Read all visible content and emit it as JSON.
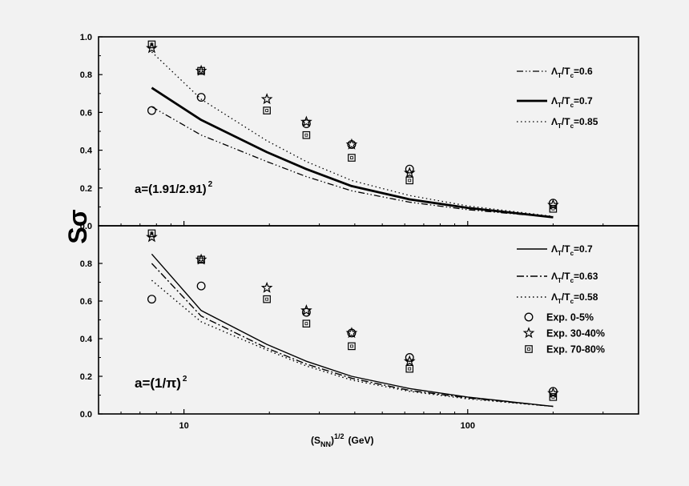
{
  "figure": {
    "ylabel": "Sσ",
    "xlabel": {
      "main": "(S",
      "sub": "NN",
      "sup": ")",
      "exp": "1/2",
      "unit": "(GeV)"
    }
  },
  "chart_data": [
    {
      "type": "line",
      "panel": "top",
      "annotation": {
        "main": "a=(1.91/2.91)",
        "exp": "2"
      },
      "x_scale": "log",
      "xlim": [
        5,
        400
      ],
      "ylim": [
        0,
        1.0
      ],
      "xticks": [
        {
          "v": 10,
          "label": "10"
        },
        {
          "v": 100,
          "label": "100"
        }
      ],
      "yticks": [
        {
          "v": 0.0,
          "label": "0.0"
        },
        {
          "v": 0.2,
          "label": "0.2"
        },
        {
          "v": 0.4,
          "label": "0.4"
        },
        {
          "v": 0.6,
          "label": "0.6"
        },
        {
          "v": 0.8,
          "label": "0.8"
        },
        {
          "v": 1.0,
          "label": "1.0"
        }
      ],
      "legend_position": "top-right",
      "series": [
        {
          "name_a": "Λ",
          "name_sub1": "T",
          "name_b": "/T",
          "name_sub2": "c",
          "name_c": "=0.6",
          "style": "dashdotdot",
          "width": 1.3,
          "x": [
            7.7,
            11.5,
            19.6,
            27,
            39,
            62.4,
            100,
            200
          ],
          "y": [
            0.63,
            0.48,
            0.34,
            0.26,
            0.185,
            0.125,
            0.085,
            0.045
          ]
        },
        {
          "name_a": "Λ",
          "name_sub1": "T",
          "name_b": "/T",
          "name_sub2": "c",
          "name_c": "=0.7",
          "style": "solid",
          "width": 2.8,
          "x": [
            7.7,
            11.5,
            19.6,
            27,
            39,
            62.4,
            100,
            200
          ],
          "y": [
            0.73,
            0.56,
            0.39,
            0.3,
            0.21,
            0.14,
            0.095,
            0.045
          ]
        },
        {
          "name_a": "Λ",
          "name_sub1": "T",
          "name_b": "/T",
          "name_sub2": "c",
          "name_c": "=0.85",
          "style": "dotted",
          "width": 1.3,
          "x": [
            7.7,
            11.5,
            19.6,
            27,
            39,
            62.4,
            100,
            200
          ],
          "y": [
            0.92,
            0.67,
            0.45,
            0.34,
            0.24,
            0.16,
            0.105,
            0.05
          ]
        }
      ],
      "points": [
        {
          "marker": "circle",
          "x": [
            7.7,
            11.5,
            27,
            39,
            62.4,
            200
          ],
          "y": [
            0.61,
            0.68,
            0.54,
            0.43,
            0.3,
            0.12
          ]
        },
        {
          "marker": "star",
          "x": [
            7.7,
            11.5,
            19.6,
            27,
            39,
            62.4,
            200
          ],
          "y": [
            0.94,
            0.82,
            0.67,
            0.55,
            0.43,
            0.28,
            0.11
          ]
        },
        {
          "marker": "square",
          "x": [
            7.7,
            11.5,
            19.6,
            27,
            39,
            62.4,
            200
          ],
          "y": [
            0.96,
            0.82,
            0.61,
            0.48,
            0.36,
            0.24,
            0.09
          ]
        }
      ]
    },
    {
      "type": "line",
      "panel": "bottom",
      "annotation": {
        "main": "a=(1/π)",
        "exp": "2"
      },
      "x_scale": "log",
      "xlim": [
        5,
        400
      ],
      "ylim": [
        0,
        1.0
      ],
      "xticks": [
        {
          "v": 10,
          "label": "10"
        },
        {
          "v": 100,
          "label": "100"
        }
      ],
      "yticks": [
        {
          "v": 0.0,
          "label": "0.0"
        },
        {
          "v": 0.2,
          "label": "0.2"
        },
        {
          "v": 0.4,
          "label": "0.4"
        },
        {
          "v": 0.6,
          "label": "0.6"
        },
        {
          "v": 0.8,
          "label": "0.8"
        }
      ],
      "legend_position": "top-right",
      "series": [
        {
          "name_a": "Λ",
          "name_sub1": "T",
          "name_b": "/T",
          "name_sub2": "c",
          "name_c": "=0.7",
          "style": "solid",
          "width": 1.4,
          "x": [
            7.7,
            11.5,
            19.6,
            27,
            39,
            62.4,
            100,
            200
          ],
          "y": [
            0.85,
            0.55,
            0.37,
            0.28,
            0.2,
            0.135,
            0.09,
            0.04
          ]
        },
        {
          "name_a": "Λ",
          "name_sub1": "T",
          "name_b": "/T",
          "name_sub2": "c",
          "name_c": "=0.63",
          "style": "dashdot",
          "width": 1.4,
          "x": [
            7.7,
            11.5,
            19.6,
            27,
            39,
            62.4,
            100,
            200
          ],
          "y": [
            0.8,
            0.52,
            0.35,
            0.265,
            0.19,
            0.125,
            0.085,
            0.04
          ]
        },
        {
          "name_a": "Λ",
          "name_sub1": "T",
          "name_b": "/T",
          "name_sub2": "c",
          "name_c": "=0.58",
          "style": "dotted",
          "width": 1.4,
          "x": [
            7.7,
            11.5,
            19.6,
            27,
            39,
            62.4,
            100,
            200
          ],
          "y": [
            0.71,
            0.49,
            0.34,
            0.255,
            0.18,
            0.12,
            0.08,
            0.04
          ]
        }
      ],
      "points": [
        {
          "name": "Exp. 0-5%",
          "marker": "circle",
          "x": [
            7.7,
            11.5,
            27,
            39,
            62.4,
            200
          ],
          "y": [
            0.61,
            0.68,
            0.54,
            0.43,
            0.3,
            0.12
          ]
        },
        {
          "name": "Exp. 30-40%",
          "marker": "star",
          "x": [
            7.7,
            11.5,
            19.6,
            27,
            39,
            62.4,
            200
          ],
          "y": [
            0.94,
            0.82,
            0.67,
            0.55,
            0.43,
            0.28,
            0.11
          ]
        },
        {
          "name": "Exp. 70-80%",
          "marker": "square",
          "x": [
            7.7,
            11.5,
            19.6,
            27,
            39,
            62.4,
            200
          ],
          "y": [
            0.96,
            0.82,
            0.61,
            0.48,
            0.36,
            0.24,
            0.09
          ]
        }
      ]
    }
  ]
}
